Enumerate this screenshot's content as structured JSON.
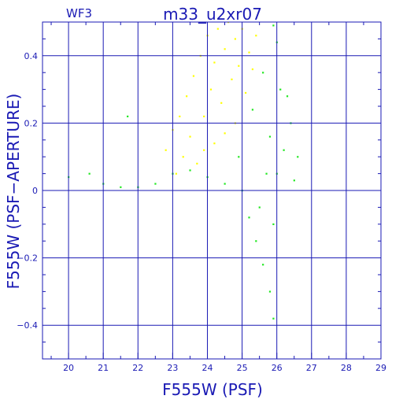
{
  "chart_data": {
    "type": "scatter",
    "title": "m33_u2xr07",
    "corner_label": "WF3",
    "xlabel": "F555W (PSF)",
    "ylabel": "F555W (PSF−APERTURE)",
    "xlim": [
      19.25,
      29.0
    ],
    "ylim": [
      -0.5,
      0.5
    ],
    "x_ticks": [
      20,
      21,
      22,
      23,
      24,
      25,
      26,
      27,
      28,
      29
    ],
    "x_tick_labels": [
      "20",
      "21",
      "22",
      "23",
      "24",
      "25",
      "26",
      "27",
      "28",
      "29"
    ],
    "y_ticks": [
      0.4,
      0.2,
      0,
      -0.2,
      -0.4
    ],
    "y_tick_labels": [
      "0.4",
      "0.2",
      "0",
      "−0.2",
      "−0.4"
    ],
    "grid": true,
    "colors": {
      "axis": "#1a1ab4",
      "grid": "#1a1ab4",
      "series_green": "#22e822",
      "series_yellow": "#ffff00"
    },
    "series": [
      {
        "color": "#ffff00",
        "points": [
          [
            22.8,
            0.12
          ],
          [
            23.0,
            0.18
          ],
          [
            23.2,
            0.22
          ],
          [
            23.4,
            0.28
          ],
          [
            23.5,
            0.16
          ],
          [
            23.6,
            0.34
          ],
          [
            23.8,
            0.4
          ],
          [
            23.9,
            0.22
          ],
          [
            24.0,
            0.46
          ],
          [
            24.1,
            0.3
          ],
          [
            24.2,
            0.38
          ],
          [
            24.3,
            0.48
          ],
          [
            24.4,
            0.26
          ],
          [
            24.5,
            0.42
          ],
          [
            24.6,
            0.5
          ],
          [
            24.7,
            0.33
          ],
          [
            24.8,
            0.45
          ],
          [
            24.9,
            0.37
          ],
          [
            25.0,
            0.48
          ],
          [
            25.1,
            0.29
          ],
          [
            25.2,
            0.41
          ],
          [
            25.3,
            0.36
          ],
          [
            23.3,
            0.1
          ],
          [
            23.7,
            0.08
          ],
          [
            24.2,
            0.14
          ],
          [
            24.8,
            0.2
          ],
          [
            25.4,
            0.46
          ],
          [
            23.1,
            0.05
          ],
          [
            23.9,
            0.12
          ],
          [
            24.5,
            0.17
          ]
        ]
      },
      {
        "color": "#22e822",
        "points": [
          [
            20.0,
            0.04
          ],
          [
            20.6,
            0.05
          ],
          [
            21.0,
            0.02
          ],
          [
            21.5,
            0.01
          ],
          [
            21.7,
            0.22
          ],
          [
            22.0,
            0.01
          ],
          [
            22.5,
            0.02
          ],
          [
            23.0,
            0.05
          ],
          [
            23.5,
            0.06
          ],
          [
            24.0,
            0.04
          ],
          [
            24.5,
            0.02
          ],
          [
            25.0,
            0.0
          ],
          [
            25.2,
            -0.08
          ],
          [
            25.4,
            -0.15
          ],
          [
            25.6,
            -0.22
          ],
          [
            25.8,
            -0.3
          ],
          [
            25.9,
            -0.38
          ],
          [
            26.0,
            0.05
          ],
          [
            26.2,
            0.12
          ],
          [
            26.4,
            0.2
          ],
          [
            26.6,
            0.1
          ],
          [
            26.1,
            0.3
          ],
          [
            26.0,
            0.44
          ],
          [
            25.9,
            0.49
          ],
          [
            25.6,
            0.35
          ],
          [
            25.7,
            0.05
          ],
          [
            25.9,
            -0.1
          ],
          [
            26.3,
            0.28
          ],
          [
            26.5,
            0.03
          ],
          [
            25.5,
            -0.05
          ],
          [
            24.9,
            0.1
          ],
          [
            25.3,
            0.24
          ],
          [
            25.8,
            0.16
          ]
        ]
      }
    ]
  }
}
